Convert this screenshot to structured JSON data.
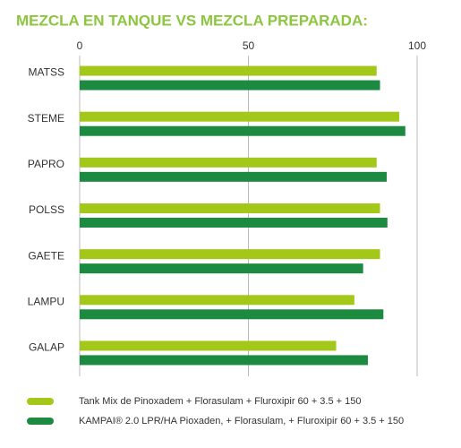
{
  "chart_data": {
    "type": "hbar",
    "title": "MEZCLA EN TANQUE VS MEZCLA PREPARADA:",
    "categories": [
      "MATSS",
      "STEME",
      "PAPRO",
      "POLSS",
      "GAETE",
      "LAMPU",
      "GALAP"
    ],
    "series": [
      {
        "name": "Tank Mix de Pinoxadem + Florasulam + Fluroxipir 60 + 3.5 + 150",
        "color": "#a3c81a",
        "values": [
          88,
          94.7,
          88,
          89,
          89,
          81.4,
          76
        ]
      },
      {
        "name": "KAMPAI® 2.0 LPR/HA Pioxaden, + Florasulam, + Fluroxipir 60 + 3.5 + 150",
        "color": "#1c8a40",
        "values": [
          89,
          96.5,
          91,
          91.2,
          84,
          90,
          85.4
        ]
      }
    ],
    "xlim": [
      0,
      100
    ],
    "xticks": [
      0,
      50,
      100
    ],
    "grid": true
  }
}
